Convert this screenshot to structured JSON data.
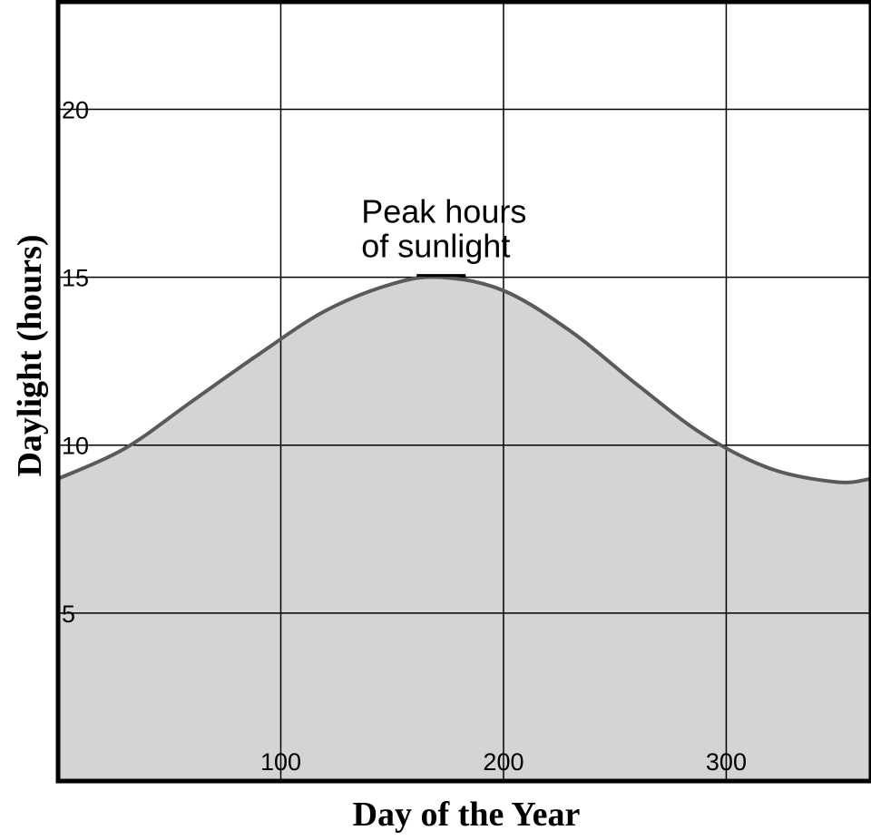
{
  "chart_data": {
    "type": "area",
    "title": "",
    "xlabel": "Day of the Year",
    "ylabel": "Daylight (hours)",
    "xlim": [
      0,
      365
    ],
    "ylim": [
      0,
      23.2
    ],
    "x_ticks": [
      100,
      200,
      300
    ],
    "y_ticks": [
      5,
      10,
      15,
      20
    ],
    "grid": true,
    "series": [
      {
        "x": [
          0,
          30,
          60,
          90,
          120,
          150,
          172,
          200,
          230,
          260,
          290,
          320,
          350,
          365
        ],
        "y": [
          9.0,
          9.9,
          11.3,
          12.7,
          14.0,
          14.8,
          15.0,
          14.6,
          13.4,
          11.8,
          10.3,
          9.3,
          8.9,
          9.0
        ]
      }
    ],
    "annotations": [
      {
        "text_line1": "Peak hours",
        "text_line2": "of sunlight",
        "x": 172,
        "y": 15
      }
    ],
    "colors": {
      "fill": "#d4d4d4",
      "line": "#5a5a5a",
      "grid": "#000000",
      "frame": "#000000"
    }
  }
}
